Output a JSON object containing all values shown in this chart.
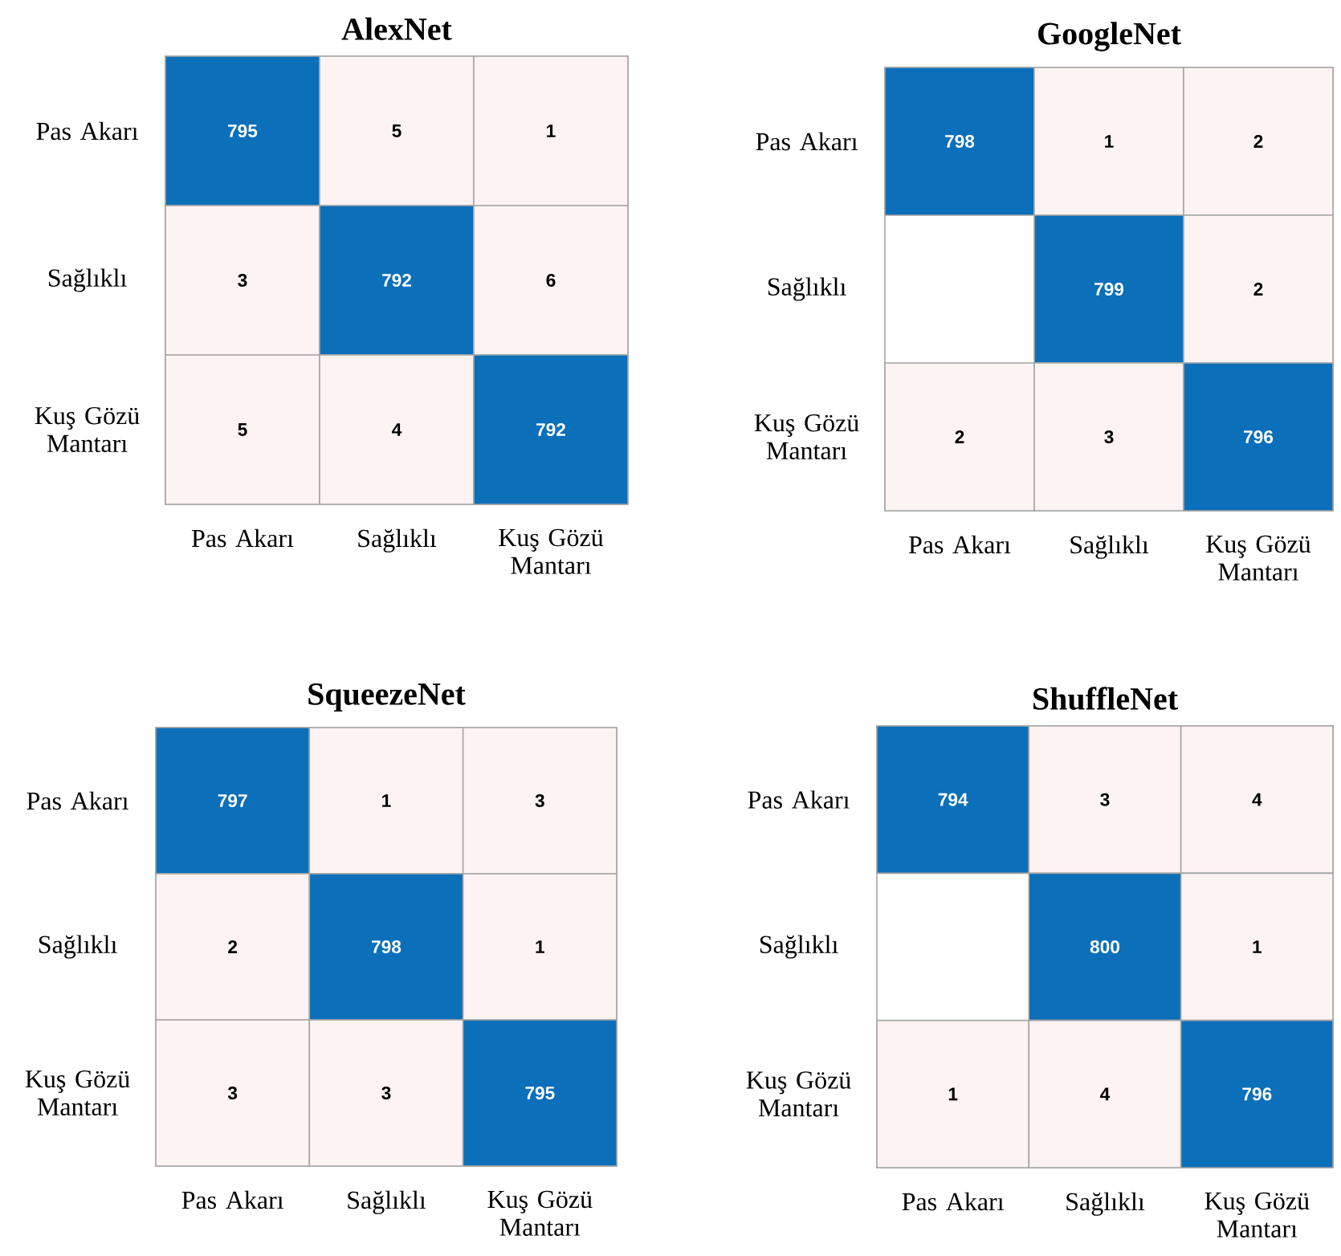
{
  "chart_data": [
    {
      "type": "heatmap",
      "title": "AlexNet",
      "categories": [
        "Pas Akarı",
        "Sağlıklı",
        "Kuş Gözü Mantarı"
      ],
      "y_categories": [
        "Pas Akarı",
        "Sağlıklı",
        "Kuş Gözü Mantarı"
      ],
      "cells": [
        [
          795,
          5,
          1
        ],
        [
          3,
          792,
          6
        ],
        [
          5,
          4,
          792
        ]
      ],
      "data_labels": true
    },
    {
      "type": "heatmap",
      "title": "GoogleNet",
      "categories": [
        "Pas Akarı",
        "Sağlıklı",
        "Kuş Gözü Mantarı"
      ],
      "y_categories": [
        "Pas Akarı",
        "Sağlıklı",
        "Kuş Gözü Mantarı"
      ],
      "cells": [
        [
          798,
          1,
          2
        ],
        [
          null,
          799,
          2
        ],
        [
          2,
          3,
          796
        ]
      ],
      "data_labels": true
    },
    {
      "type": "heatmap",
      "title": "SqueezeNet",
      "categories": [
        "Pas Akarı",
        "Sağlıklı",
        "Kuş Gözü Mantarı"
      ],
      "y_categories": [
        "Pas Akarı",
        "Sağlıklı",
        "Kuş Gözü Mantarı"
      ],
      "cells": [
        [
          797,
          1,
          3
        ],
        [
          2,
          798,
          1
        ],
        [
          3,
          3,
          795
        ]
      ],
      "data_labels": true
    },
    {
      "type": "heatmap",
      "title": "ShuffleNet",
      "categories": [
        "Pas Akarı",
        "Sağlıklı",
        "Kuş Gözü Mantarı"
      ],
      "y_categories": [
        "Pas Akarı",
        "Sağlıklı",
        "Kuş Gözü Mantarı"
      ],
      "cells": [
        [
          794,
          3,
          4
        ],
        [
          null,
          800,
          1
        ],
        [
          1,
          4,
          796
        ]
      ],
      "data_labels": true
    }
  ]
}
